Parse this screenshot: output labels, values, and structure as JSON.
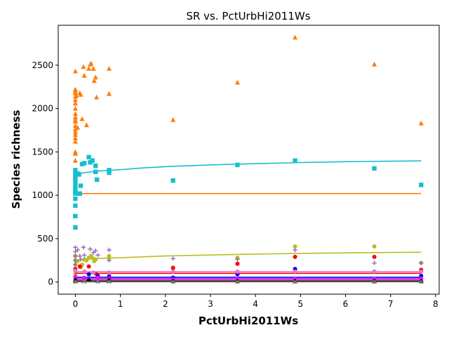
{
  "chart_data": {
    "type": "scatter",
    "title": "SR vs. PctUrbHi2011Ws",
    "xlabel": "PctUrbHi2011Ws",
    "ylabel": "Species richness",
    "xlim": [
      -0.38,
      8.08
    ],
    "ylim": [
      -140,
      2960
    ],
    "xticks": [
      0,
      1,
      2,
      3,
      4,
      5,
      6,
      7,
      8
    ],
    "yticks": [
      0,
      500,
      1000,
      1500,
      2000,
      2500
    ],
    "grid": false,
    "series": [
      {
        "color": "#ff7f0e",
        "marker": "triangle",
        "points": [
          [
            0,
            2430
          ],
          [
            0,
            2220
          ],
          [
            0,
            2200
          ],
          [
            0,
            2180
          ],
          [
            0,
            2140
          ],
          [
            0,
            2100
          ],
          [
            0,
            2060
          ],
          [
            0,
            2000
          ],
          [
            0,
            1940
          ],
          [
            0,
            1900
          ],
          [
            0,
            1870
          ],
          [
            0,
            1850
          ],
          [
            0,
            1800
          ],
          [
            0,
            1760
          ],
          [
            0,
            1730
          ],
          [
            0,
            1700
          ],
          [
            0,
            1660
          ],
          [
            0,
            1620
          ],
          [
            0,
            1500
          ],
          [
            0,
            1480
          ],
          [
            0,
            1400
          ],
          [
            0.02,
            2150
          ],
          [
            0.05,
            1780
          ],
          [
            0.1,
            2180
          ],
          [
            0.12,
            2160
          ],
          [
            0.15,
            1880
          ],
          [
            0.18,
            2480
          ],
          [
            0.2,
            2380
          ],
          [
            0.25,
            1810
          ],
          [
            0.3,
            2460
          ],
          [
            0.33,
            2510
          ],
          [
            0.35,
            2520
          ],
          [
            0.4,
            2460
          ],
          [
            0.42,
            2320
          ],
          [
            0.45,
            2360
          ],
          [
            0.47,
            2130
          ],
          [
            0.75,
            2460
          ],
          [
            0.75,
            2170
          ],
          [
            2.17,
            1870
          ],
          [
            3.6,
            2300
          ],
          [
            4.88,
            2820
          ],
          [
            6.64,
            2510
          ],
          [
            7.68,
            1830
          ]
        ],
        "fit": [
          [
            0,
            1020
          ],
          [
            7.68,
            1020
          ]
        ]
      },
      {
        "color": "#17becf",
        "marker": "square",
        "points": [
          [
            0,
            1290
          ],
          [
            0,
            1260
          ],
          [
            0,
            1230
          ],
          [
            0,
            1190
          ],
          [
            0,
            1150
          ],
          [
            0,
            1110
          ],
          [
            0,
            1080
          ],
          [
            0,
            1050
          ],
          [
            0,
            1020
          ],
          [
            0,
            960
          ],
          [
            0,
            880
          ],
          [
            0,
            760
          ],
          [
            0,
            630
          ],
          [
            0.05,
            1250
          ],
          [
            0.08,
            1240
          ],
          [
            0.1,
            1020
          ],
          [
            0.12,
            1110
          ],
          [
            0.15,
            1360
          ],
          [
            0.2,
            1370
          ],
          [
            0.3,
            1440
          ],
          [
            0.33,
            1380
          ],
          [
            0.38,
            1400
          ],
          [
            0.45,
            1340
          ],
          [
            0.45,
            1270
          ],
          [
            0.48,
            1180
          ],
          [
            0.75,
            1290
          ],
          [
            0.75,
            1260
          ],
          [
            2.17,
            1170
          ],
          [
            3.6,
            1350
          ],
          [
            4.88,
            1400
          ],
          [
            6.64,
            1310
          ],
          [
            7.68,
            1120
          ]
        ],
        "fit": [
          [
            0,
            1180
          ],
          [
            0.05,
            1240
          ],
          [
            0.2,
            1260
          ],
          [
            0.5,
            1280
          ],
          [
            1,
            1295
          ],
          [
            1.5,
            1315
          ],
          [
            2.17,
            1335
          ],
          [
            3,
            1350
          ],
          [
            4,
            1365
          ],
          [
            5,
            1378
          ],
          [
            6,
            1387
          ],
          [
            7,
            1393
          ],
          [
            7.68,
            1396
          ]
        ]
      },
      {
        "color": "#bcbd22",
        "marker": "circle",
        "points": [
          [
            0,
            300
          ],
          [
            0,
            250
          ],
          [
            0,
            200
          ],
          [
            0,
            150
          ],
          [
            0,
            100
          ],
          [
            0.05,
            240
          ],
          [
            0.12,
            170
          ],
          [
            0.15,
            200
          ],
          [
            0.2,
            260
          ],
          [
            0.25,
            250
          ],
          [
            0.3,
            280
          ],
          [
            0.35,
            300
          ],
          [
            0.4,
            270
          ],
          [
            0.42,
            240
          ],
          [
            0.45,
            260
          ],
          [
            0.75,
            300
          ],
          [
            0.75,
            280
          ],
          [
            2.17,
            170
          ],
          [
            3.6,
            280
          ],
          [
            4.88,
            410
          ],
          [
            6.64,
            410
          ],
          [
            7.68,
            220
          ]
        ],
        "fit": [
          [
            0,
            210
          ],
          [
            0.05,
            255
          ],
          [
            0.5,
            270
          ],
          [
            1,
            280
          ],
          [
            2,
            300
          ],
          [
            3,
            312
          ],
          [
            4,
            322
          ],
          [
            5,
            330
          ],
          [
            6,
            336
          ],
          [
            7,
            341
          ],
          [
            7.68,
            343
          ]
        ]
      },
      {
        "color": "#9467bd",
        "marker": "plus",
        "points": [
          [
            0,
            400
          ],
          [
            0,
            350
          ],
          [
            0,
            300
          ],
          [
            0,
            250
          ],
          [
            0,
            200
          ],
          [
            0.05,
            370
          ],
          [
            0.1,
            300
          ],
          [
            0.12,
            260
          ],
          [
            0.18,
            400
          ],
          [
            0.2,
            310
          ],
          [
            0.33,
            380
          ],
          [
            0.4,
            340
          ],
          [
            0.45,
            360
          ],
          [
            0.5,
            310
          ],
          [
            0.75,
            370
          ],
          [
            0.75,
            250
          ],
          [
            2.17,
            270
          ],
          [
            3.6,
            260
          ],
          [
            4.88,
            370
          ],
          [
            6.64,
            220
          ],
          [
            7.68,
            220
          ]
        ],
        "fit": [
          [
            0,
            40
          ],
          [
            0.05,
            40
          ],
          [
            7.68,
            40
          ]
        ]
      },
      {
        "color": "#ff0000",
        "marker": "circle",
        "points": [
          [
            0,
            150
          ],
          [
            0.1,
            180
          ],
          [
            0.3,
            180
          ],
          [
            0.45,
            100
          ],
          [
            0.75,
            100
          ],
          [
            2.17,
            160
          ],
          [
            3.6,
            210
          ],
          [
            4.88,
            290
          ],
          [
            6.64,
            290
          ],
          [
            7.68,
            140
          ]
        ],
        "fit": [
          [
            0,
            100
          ],
          [
            7.68,
            100
          ]
        ]
      },
      {
        "color": "#0000ff",
        "marker": "circle",
        "points": [
          [
            0,
            60
          ],
          [
            0.3,
            90
          ],
          [
            0.5,
            70
          ],
          [
            0.75,
            60
          ],
          [
            2.17,
            50
          ],
          [
            3.6,
            90
          ],
          [
            4.88,
            150
          ],
          [
            6.64,
            120
          ],
          [
            7.68,
            70
          ]
        ],
        "fit": [
          [
            0,
            55
          ],
          [
            7.68,
            55
          ]
        ]
      },
      {
        "color": "#e377c2",
        "marker": "circle",
        "points": [
          [
            0,
            130
          ],
          [
            0.2,
            120
          ],
          [
            0.4,
            110
          ],
          [
            0.75,
            110
          ],
          [
            2.17,
            120
          ],
          [
            3.6,
            120
          ],
          [
            4.88,
            120
          ],
          [
            6.64,
            120
          ],
          [
            7.68,
            120
          ]
        ],
        "fit": [
          [
            0,
            120
          ],
          [
            7.68,
            120
          ]
        ]
      },
      {
        "color": "#8c564b",
        "marker": "triangle",
        "points": [
          [
            0,
            20
          ],
          [
            0,
            10
          ],
          [
            0.2,
            20
          ],
          [
            0.5,
            15
          ],
          [
            0.75,
            15
          ],
          [
            2.17,
            10
          ],
          [
            3.6,
            10
          ],
          [
            4.88,
            10
          ],
          [
            6.64,
            10
          ],
          [
            7.68,
            10
          ]
        ],
        "fit": [
          [
            0,
            15
          ],
          [
            7.68,
            15
          ]
        ]
      },
      {
        "color": "#ff00ff",
        "marker": "circle",
        "points": [
          [
            0,
            60
          ],
          [
            0.2,
            50
          ],
          [
            0.5,
            50
          ],
          [
            0.75,
            40
          ],
          [
            2.17,
            30
          ],
          [
            3.6,
            40
          ],
          [
            4.88,
            40
          ],
          [
            6.64,
            40
          ],
          [
            7.68,
            40
          ]
        ],
        "fit": [
          [
            0,
            30
          ],
          [
            7.68,
            30
          ]
        ]
      },
      {
        "color": "#000000",
        "marker": "circle",
        "points": [
          [
            0,
            20
          ],
          [
            0.3,
            20
          ],
          [
            0.75,
            20
          ],
          [
            2.17,
            10
          ],
          [
            3.6,
            10
          ],
          [
            4.88,
            10
          ],
          [
            6.64,
            10
          ],
          [
            7.68,
            10
          ]
        ],
        "fit": [
          [
            0,
            10
          ],
          [
            7.68,
            10
          ]
        ]
      },
      {
        "color": "#7f7f7f",
        "marker": "x",
        "points": [
          [
            0,
            5
          ],
          [
            0.2,
            5
          ],
          [
            0.5,
            5
          ],
          [
            0.75,
            5
          ],
          [
            2.17,
            5
          ],
          [
            3.6,
            5
          ],
          [
            4.88,
            5
          ],
          [
            6.64,
            5
          ],
          [
            7.68,
            5
          ]
        ],
        "fit": [
          [
            0,
            2
          ],
          [
            7.68,
            2
          ]
        ]
      }
    ]
  }
}
